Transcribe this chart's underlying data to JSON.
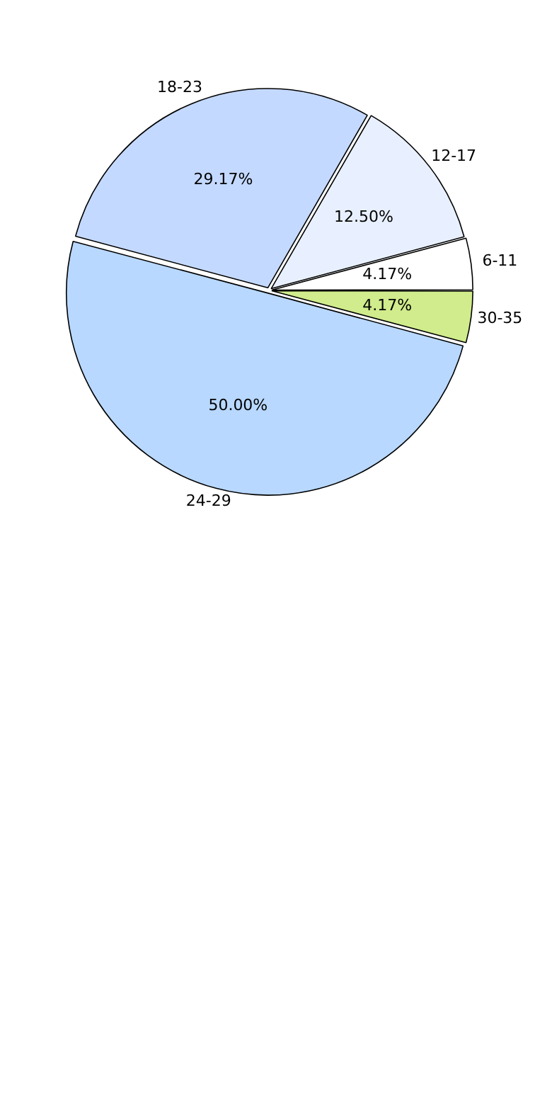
{
  "chart_data": {
    "type": "pie",
    "categories": [
      "30-35",
      "24-29",
      "18-23",
      "12-17",
      "6-11"
    ],
    "values": [
      4.17,
      50,
      29.17,
      12.5,
      4.17
    ],
    "value_labels": [
      "4.17%",
      "50.00%",
      "29.17%",
      "12.50%",
      "4.17%"
    ],
    "colors": [
      "#d0ec8c",
      "#b8d8ff",
      "#c4d9ff",
      "#e8f0ff",
      "#ffffff"
    ],
    "legend": false
  }
}
